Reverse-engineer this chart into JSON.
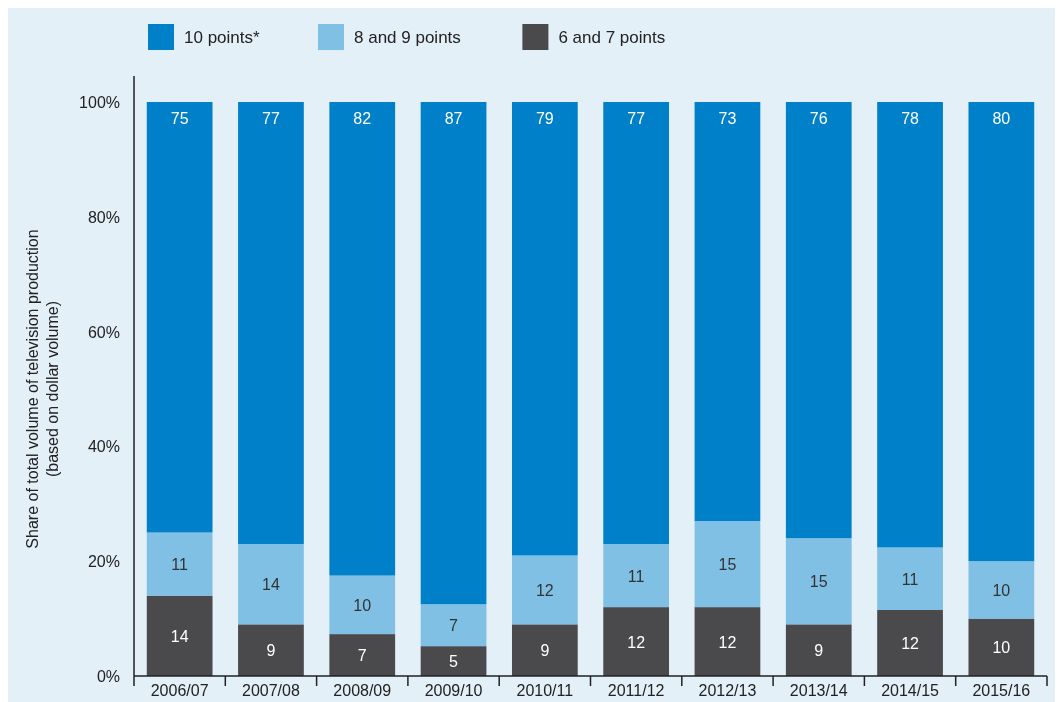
{
  "chart_data": {
    "type": "bar",
    "stacked": true,
    "ylabel": "Share of total volume of television production\n(based on dollar volume)",
    "categories": [
      "2006/07",
      "2007/08",
      "2008/09",
      "2009/10",
      "2010/11",
      "2011/12",
      "2012/13",
      "2013/14",
      "2014/15",
      "2015/16"
    ],
    "series": [
      {
        "name": "6 and 7 points",
        "color": "#4a4a4d",
        "values": [
          14,
          9,
          7.3,
          5.2,
          9,
          12,
          12,
          9,
          11.5,
          10
        ],
        "value_labels": [
          "14",
          "9",
          "7",
          "5",
          "9",
          "12",
          "12",
          "9",
          "12",
          "10"
        ]
      },
      {
        "name": "8 and 9 points",
        "color": "#80c0e4",
        "values": [
          11,
          14,
          10.2,
          7.3,
          12,
          11,
          15,
          15,
          10.9,
          10
        ],
        "value_labels": [
          "11",
          "14",
          "10",
          "7",
          "12",
          "11",
          "15",
          "15",
          "11",
          "10"
        ]
      },
      {
        "name": "10 points*",
        "color": "#0080c9",
        "values": [
          75,
          77,
          82.5,
          87.5,
          79,
          77,
          73,
          76,
          77.6,
          80
        ],
        "value_labels": [
          "75",
          "77",
          "82",
          "87",
          "79",
          "77",
          "73",
          "76",
          "78",
          "80"
        ]
      }
    ],
    "ylim": [
      0,
      100
    ],
    "yticks": [
      {
        "value": 0,
        "label": "0%"
      },
      {
        "value": 20,
        "label": "20%"
      },
      {
        "value": 40,
        "label": "40%"
      },
      {
        "value": 60,
        "label": "60%"
      },
      {
        "value": 80,
        "label": "80%"
      },
      {
        "value": 100,
        "label": "100%"
      }
    ],
    "legend": "top left",
    "grid": false
  }
}
